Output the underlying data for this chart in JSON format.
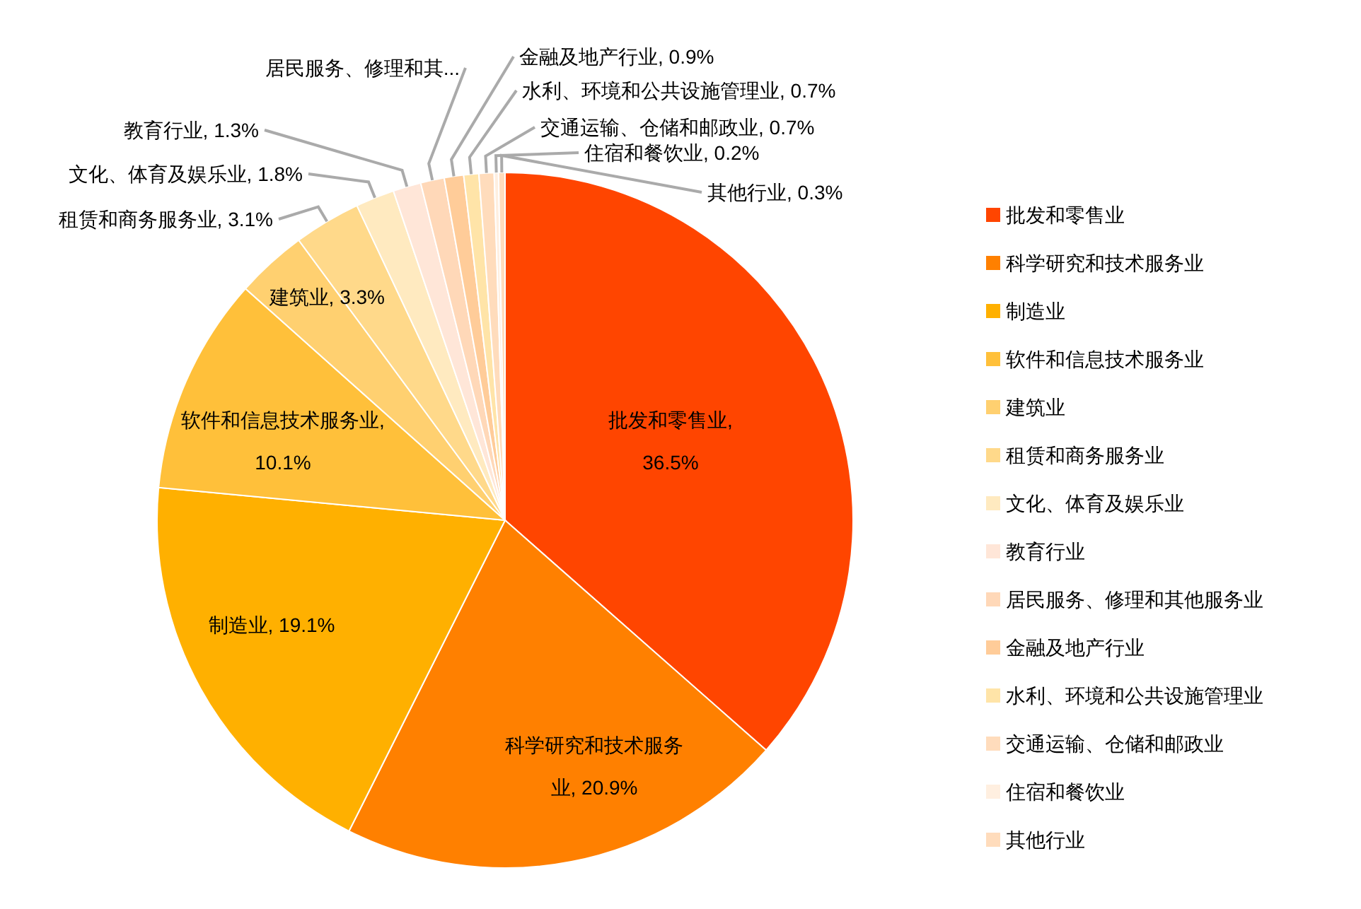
{
  "chart_data": {
    "type": "pie",
    "legend": "right",
    "categories": [
      "批发和零售业",
      "科学研究和技术服务业",
      "制造业",
      "软件和信息技术服务业",
      "建筑业",
      "租赁和商务服务业",
      "文化、体育及娱乐业",
      "教育行业",
      "居民服务、修理和其他服务业",
      "金融及地产行业",
      "水利、环境和公共设施管理业",
      "交通运输、仓储和邮政业",
      "住宿和餐饮业",
      "其他行业"
    ],
    "values": [
      36.5,
      20.9,
      19.1,
      10.1,
      3.3,
      3.1,
      1.8,
      1.3,
      1.1,
      0.9,
      0.7,
      0.7,
      0.2,
      0.3
    ],
    "colors": [
      "#ff4500",
      "#ff8000",
      "#ffb000",
      "#ffc03a",
      "#ffd070",
      "#ffd98a",
      "#ffeac0",
      "#ffe6d8",
      "#ffd8b8",
      "#ffcc99",
      "#ffe4a8",
      "#ffdcbc",
      "#ffefe0",
      "#ffdcbc"
    ],
    "value_labels": [
      "批发和零售业, 36.5%",
      "科学研究和技术服务业, 20.9%",
      "制造业, 19.1%",
      "软件和信息技术服务业, 10.1%",
      "建筑业, 3.3%",
      "租赁和商务服务业, 3.1%",
      "文化、体育及娱乐业, 1.8%",
      "教育行业, 1.3%",
      "居民服务、修理和其...",
      "金融及地产行业, 0.9%",
      "水利、环境和公共设施管理业, 0.7%",
      "交通运输、仓储和邮政业, 0.7%",
      "住宿和餐饮业, 0.2%",
      "其他行业, 0.3%"
    ]
  }
}
